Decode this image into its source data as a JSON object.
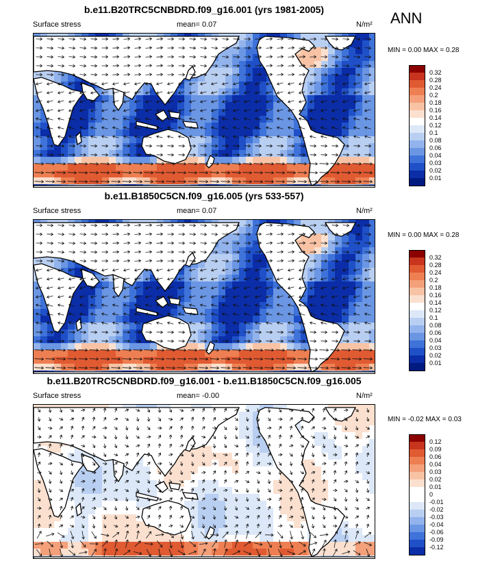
{
  "season": "ANN",
  "panels": [
    {
      "title": "b.e11.B20TRC5CNBDRD.f09_g16.001 (yrs 1981-2005)",
      "variable": "Surface stress",
      "mean": "mean=  0.07",
      "units": "N/m²",
      "minmax": "MIN =  0.00 MAX =  0.28",
      "levels": [
        "0.32",
        "0.28",
        "0.24",
        "0.2",
        "0.18",
        "0.16",
        "0.14",
        "0.12",
        "0.1",
        "0.08",
        "0.06",
        "0.04",
        "0.03",
        "0.02",
        "0.01"
      ],
      "colors": [
        "#8b0000",
        "#c8341e",
        "#e05a32",
        "#ee7f52",
        "#f4a07a",
        "#f8c3a5",
        "#fbe0cf",
        "#ffffff",
        "#dce8f8",
        "#b9cff2",
        "#92b3ec",
        "#6a96e4",
        "#3f73da",
        "#1f50c8",
        "#0b2da8",
        "#001a80"
      ]
    },
    {
      "title": "b.e11.B1850C5CN.f09_g16.005 (yrs 533-557)",
      "variable": "Surface stress",
      "mean": "mean=  0.07",
      "units": "N/m²",
      "minmax": "MIN =  0.00 MAX =  0.28",
      "levels": [
        "0.32",
        "0.28",
        "0.24",
        "0.2",
        "0.18",
        "0.16",
        "0.14",
        "0.12",
        "0.1",
        "0.08",
        "0.06",
        "0.04",
        "0.03",
        "0.02",
        "0.01"
      ],
      "colors": [
        "#8b0000",
        "#c8341e",
        "#e05a32",
        "#ee7f52",
        "#f4a07a",
        "#f8c3a5",
        "#fbe0cf",
        "#ffffff",
        "#dce8f8",
        "#b9cff2",
        "#92b3ec",
        "#6a96e4",
        "#3f73da",
        "#1f50c8",
        "#0b2da8",
        "#001a80"
      ]
    },
    {
      "title": "b.e11.B20TRC5CNBDRD.f09_g16.001 - b.e11.B1850C5CN.f09_g16.005",
      "variable": "Surface stress",
      "mean": "mean=  -0.00",
      "units": "N/m²",
      "minmax": "MIN =  -0.02 MAX =  0.03",
      "levels": [
        "0.12",
        "0.09",
        "0.06",
        "0.04",
        "0.03",
        "0.02",
        "0.01",
        "0",
        "-0.01",
        "-0.02",
        "-0.03",
        "-0.04",
        "-0.06",
        "-0.09",
        "-0.12"
      ],
      "colors": [
        "#8b0000",
        "#c8341e",
        "#e05a32",
        "#ee7f52",
        "#f4a07a",
        "#f8c3a5",
        "#fbe0cf",
        "#ffffff",
        "#ffffff",
        "#dce8f8",
        "#b9cff2",
        "#92b3ec",
        "#6a96e4",
        "#3f73da",
        "#1f50c8",
        "#0b2da8"
      ]
    }
  ],
  "chart_data": [
    {
      "type": "heatmap",
      "title": "b.e11.B20TRC5CNBDRD.f09_g16.001 (yrs 1981-2005)",
      "variable": "Surface stress",
      "units": "N/m2",
      "mean": 0.07,
      "min": 0.0,
      "max": 0.28
    },
    {
      "type": "heatmap",
      "title": "b.e11.B1850C5CN.f09_g16.005 (yrs 533-557)",
      "variable": "Surface stress",
      "units": "N/m2",
      "mean": 0.07,
      "min": 0.0,
      "max": 0.28
    },
    {
      "type": "heatmap",
      "title": "b.e11.B20TRC5CNBDRD.f09_g16.001 - b.e11.B1850C5CN.f09_g16.005",
      "variable": "Surface stress",
      "units": "N/m2",
      "mean": -0.0,
      "min": -0.02,
      "max": 0.03
    }
  ]
}
